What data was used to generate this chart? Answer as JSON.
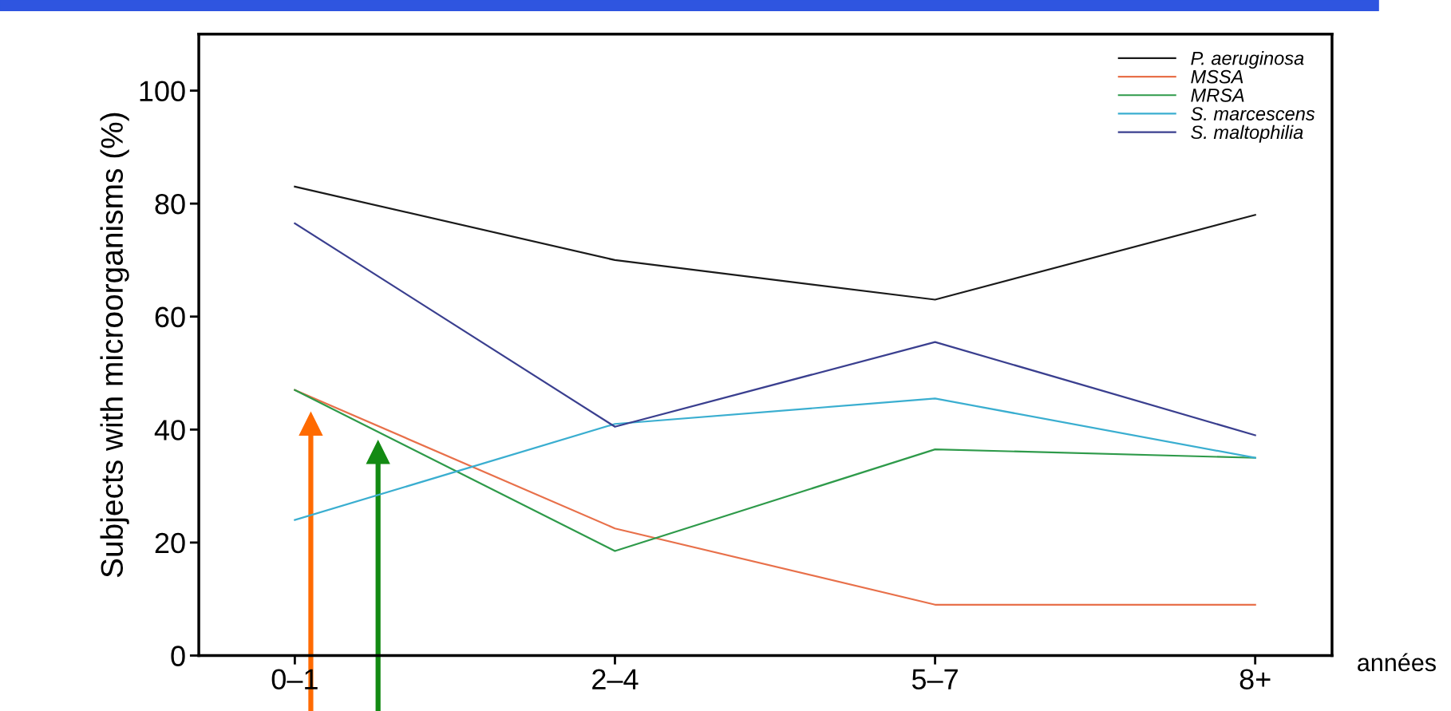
{
  "chart_data": {
    "type": "line",
    "ylabel": "Subjects with microorganisms (%)",
    "categories": [
      "0–1",
      "2–4",
      "5–7",
      "8+"
    ],
    "series": [
      {
        "name": "P. aeruginosa",
        "color": "#1a1a1a",
        "values": [
          83,
          70,
          63,
          78
        ]
      },
      {
        "name": "MSSA",
        "color": "#e8704a",
        "values": [
          47,
          22.5,
          9,
          9
        ]
      },
      {
        "name": "MRSA",
        "color": "#2e9a4a",
        "values": [
          47,
          18.5,
          36.5,
          35
        ]
      },
      {
        "name": "S. marcescens",
        "color": "#3aaed0",
        "values": [
          24,
          41,
          45.5,
          35
        ]
      },
      {
        "name": "S. maltophilia",
        "color": "#3a3f8f",
        "values": [
          76.5,
          40.5,
          55.5,
          39
        ]
      }
    ],
    "ylim": [
      0,
      110
    ],
    "yticks": [
      0,
      20,
      40,
      60,
      80,
      100
    ],
    "annotations": [
      "années"
    ],
    "legend": "top right",
    "grid": false
  }
}
